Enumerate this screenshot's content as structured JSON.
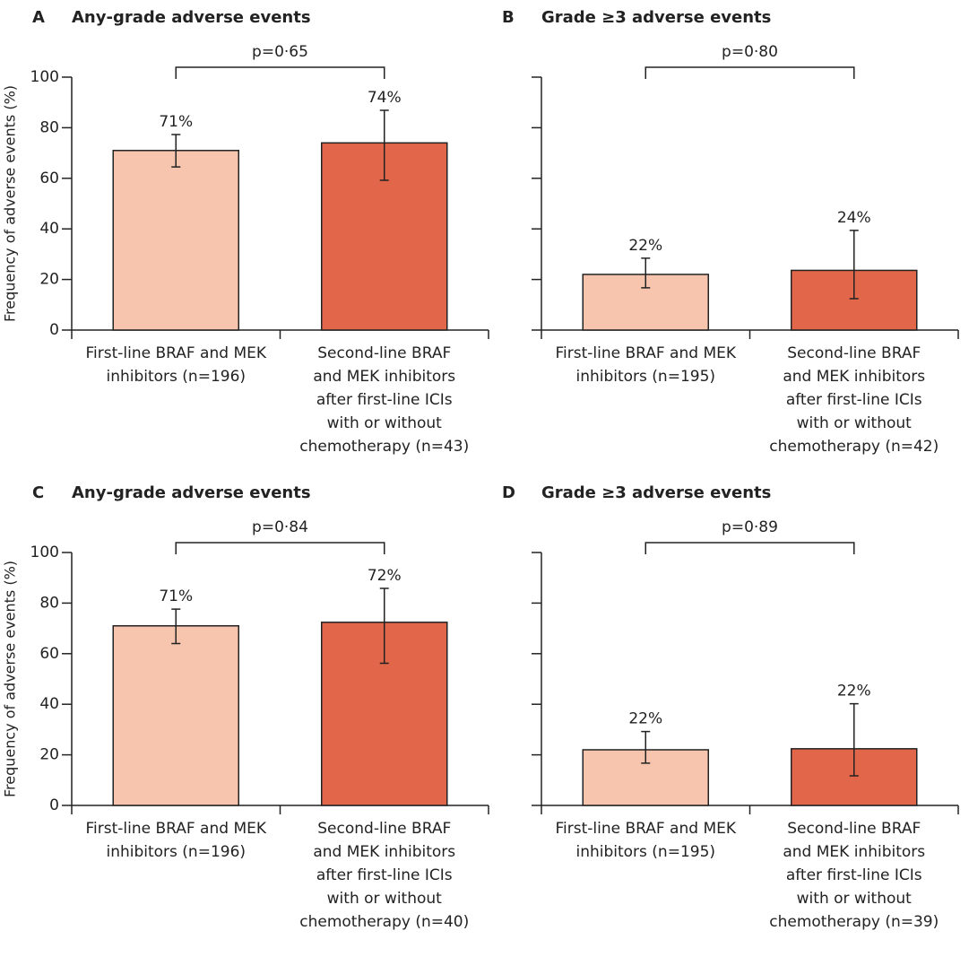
{
  "chart_data": [
    {
      "type": "bar",
      "panel": "A",
      "title": "Any-grade adverse events",
      "ylabel": "Frequency of adverse events (%)",
      "categories": [
        [
          "First-line BRAF and MEK",
          "inhibitors (n=196)"
        ],
        [
          "Second-line BRAF",
          "and MEK inhibitors",
          "after first-line ICIs",
          "with or without",
          "chemotherapy (n=43)"
        ]
      ],
      "values": [
        71,
        74
      ],
      "value_labels": [
        "71%",
        "74%"
      ],
      "ci_low": [
        64.5,
        59.2
      ],
      "ci_high": [
        77.3,
        86.9
      ],
      "colors": [
        "#f7c4ae",
        "#e2664a"
      ],
      "annotation": "p=0·65",
      "ylim": [
        0,
        100
      ],
      "yticks": [
        0,
        20,
        40,
        60,
        80,
        100
      ],
      "tick_labels": true
    },
    {
      "type": "bar",
      "panel": "B",
      "title": "Grade ≥3 adverse events",
      "categories": [
        [
          "First-line BRAF and MEK",
          "inhibitors (n=195)"
        ],
        [
          "Second-line BRAF",
          "and MEK inhibitors",
          "after first-line ICIs",
          "with or without",
          "chemotherapy (n=42)"
        ]
      ],
      "values": [
        22,
        23.6
      ],
      "value_labels": [
        "22%",
        "24%"
      ],
      "ci_low": [
        16.7,
        12.4
      ],
      "ci_high": [
        28.4,
        39.4
      ],
      "colors": [
        "#f7c4ae",
        "#e2664a"
      ],
      "annotation": "p=0·80",
      "ylim": [
        0,
        100
      ],
      "yticks": [
        0,
        20,
        40,
        60,
        80,
        100
      ],
      "tick_labels": false
    },
    {
      "type": "bar",
      "panel": "C",
      "title": "Any-grade adverse events",
      "ylabel": "Frequency of adverse events (%)",
      "categories": [
        [
          "First-line BRAF and MEK",
          "inhibitors (n=196)"
        ],
        [
          "Second-line BRAF",
          "and MEK inhibitors",
          "after first-line ICIs",
          "with or without",
          "chemotherapy (n=40)"
        ]
      ],
      "values": [
        71,
        72.4
      ],
      "value_labels": [
        "71%",
        "72%"
      ],
      "ci_low": [
        64,
        56.2
      ],
      "ci_high": [
        77.6,
        85.8
      ],
      "colors": [
        "#f7c4ae",
        "#e2664a"
      ],
      "annotation": "p=0·84",
      "ylim": [
        0,
        100
      ],
      "yticks": [
        0,
        20,
        40,
        60,
        80,
        100
      ],
      "tick_labels": true
    },
    {
      "type": "bar",
      "panel": "D",
      "title": "Grade ≥3 adverse events",
      "categories": [
        [
          "First-line BRAF and MEK",
          "inhibitors (n=195)"
        ],
        [
          "Second-line BRAF",
          "and MEK inhibitors",
          "after first-line ICIs",
          "with or without",
          "chemotherapy (n=39)"
        ]
      ],
      "values": [
        22,
        22.4
      ],
      "value_labels": [
        "22%",
        "22%"
      ],
      "ci_low": [
        16.7,
        11.7
      ],
      "ci_high": [
        29.2,
        40.2
      ],
      "colors": [
        "#f7c4ae",
        "#e2664a"
      ],
      "annotation": "p=0·89",
      "ylim": [
        0,
        100
      ],
      "yticks": [
        0,
        20,
        40,
        60,
        80,
        100
      ],
      "tick_labels": false
    }
  ]
}
